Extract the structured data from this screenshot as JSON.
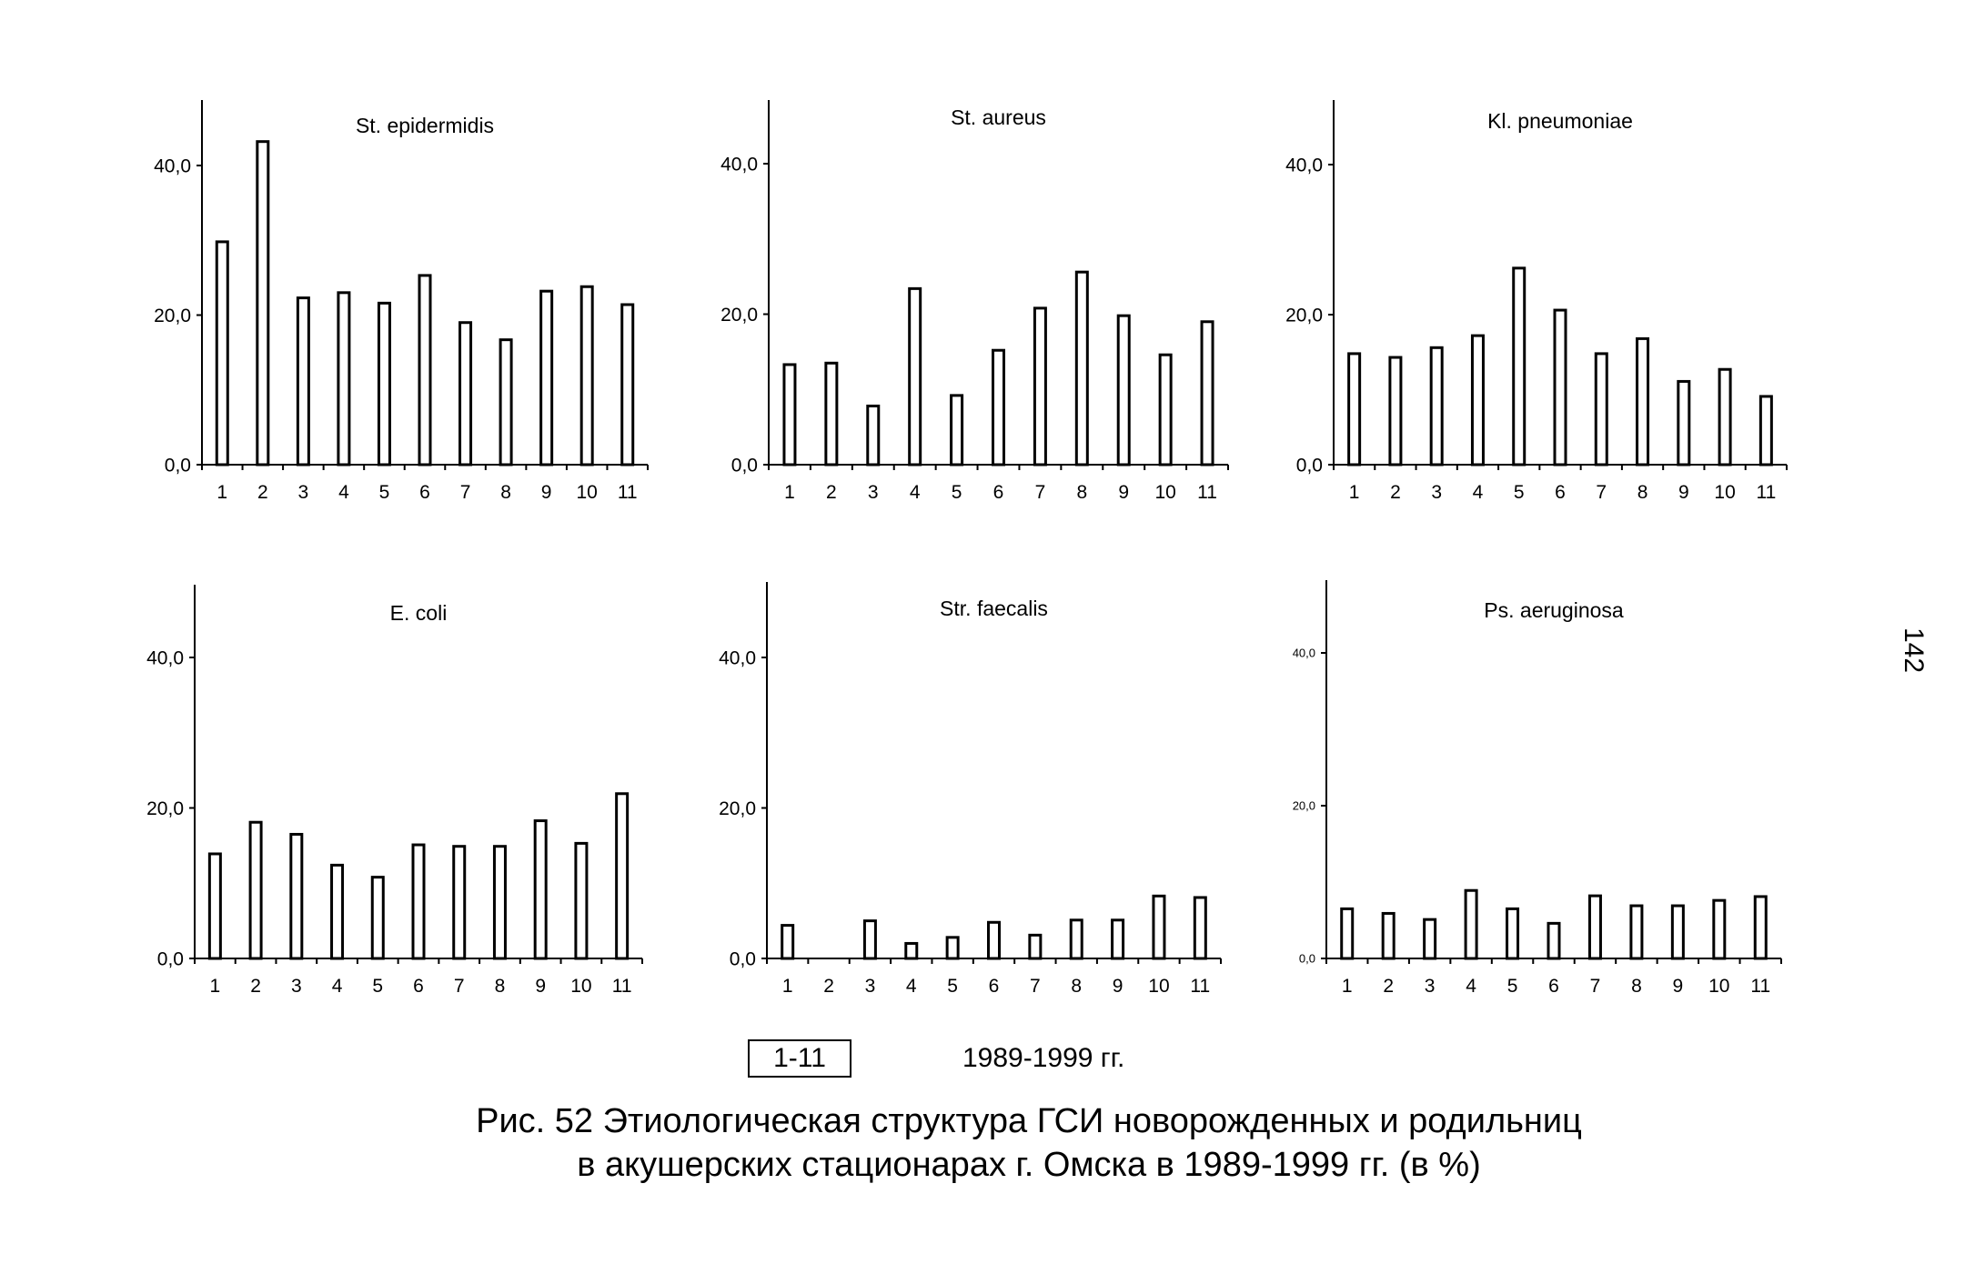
{
  "page_number": "142",
  "legend": {
    "box_label": "1-11",
    "text": "1989-1999 гг."
  },
  "caption": {
    "line1": "Рис. 52 Этиологическая структура ГСИ новорожденных и родильниц",
    "line2": "в акушерских стационарах г. Омска в 1989-1999 гг. (в %)"
  },
  "chart_data": [
    {
      "type": "bar",
      "title": "St. epidermidis",
      "categories": [
        "1",
        "2",
        "3",
        "4",
        "5",
        "6",
        "7",
        "8",
        "9",
        "10",
        "11"
      ],
      "values": [
        29.8,
        43.2,
        22.3,
        23.0,
        21.6,
        25.3,
        19.0,
        16.7,
        23.2,
        23.8,
        21.4
      ],
      "yticks": [
        "0,0",
        "20,0",
        "40,0"
      ],
      "ylim": [
        0,
        48
      ]
    },
    {
      "type": "bar",
      "title": "St. aureus",
      "categories": [
        "1",
        "2",
        "3",
        "4",
        "5",
        "6",
        "7",
        "8",
        "9",
        "10",
        "11"
      ],
      "values": [
        13.3,
        13.5,
        7.8,
        23.4,
        9.2,
        15.2,
        20.8,
        25.6,
        19.8,
        14.6,
        19.0
      ],
      "yticks": [
        "0,0",
        "20,0",
        "40,0"
      ],
      "ylim": [
        0,
        48
      ]
    },
    {
      "type": "bar",
      "title": "Kl. pneumoniae",
      "categories": [
        "1",
        "2",
        "3",
        "4",
        "5",
        "6",
        "7",
        "8",
        "9",
        "10",
        "11"
      ],
      "values": [
        14.8,
        14.3,
        15.6,
        17.2,
        26.2,
        20.6,
        14.8,
        16.8,
        11.1,
        12.7,
        9.1
      ],
      "yticks": [
        "0,0",
        "20,0",
        "40,0"
      ],
      "ylim": [
        0,
        48
      ]
    },
    {
      "type": "bar",
      "title": "E. coli",
      "categories": [
        "1",
        "2",
        "3",
        "4",
        "5",
        "6",
        "7",
        "8",
        "9",
        "10",
        "11"
      ],
      "values": [
        13.9,
        18.1,
        16.5,
        12.4,
        10.8,
        15.1,
        14.9,
        14.9,
        18.3,
        15.3,
        21.9
      ],
      "yticks": [
        "0,0",
        "20,0",
        "40,0"
      ],
      "ylim": [
        0,
        48
      ]
    },
    {
      "type": "bar",
      "title": "Str. faecalis",
      "categories": [
        "1",
        "2",
        "3",
        "4",
        "5",
        "6",
        "7",
        "8",
        "9",
        "10",
        "11"
      ],
      "values": [
        4.4,
        0,
        5.0,
        2.0,
        2.8,
        4.8,
        3.1,
        5.1,
        5.1,
        8.3,
        8.1
      ],
      "yticks": [
        "0,0",
        "20,0",
        "40,0"
      ],
      "ylim": [
        0,
        48
      ]
    },
    {
      "type": "bar",
      "title": "Ps. aeruginosa",
      "categories": [
        "1",
        "2",
        "3",
        "4",
        "5",
        "6",
        "7",
        "8",
        "9",
        "10",
        "11"
      ],
      "values": [
        6.5,
        5.9,
        5.1,
        8.9,
        6.5,
        4.6,
        8.2,
        6.9,
        6.9,
        7.6,
        8.1
      ],
      "yticks": [
        "0,0",
        "20,0",
        "40,0"
      ],
      "ylim": [
        0,
        48
      ]
    }
  ]
}
